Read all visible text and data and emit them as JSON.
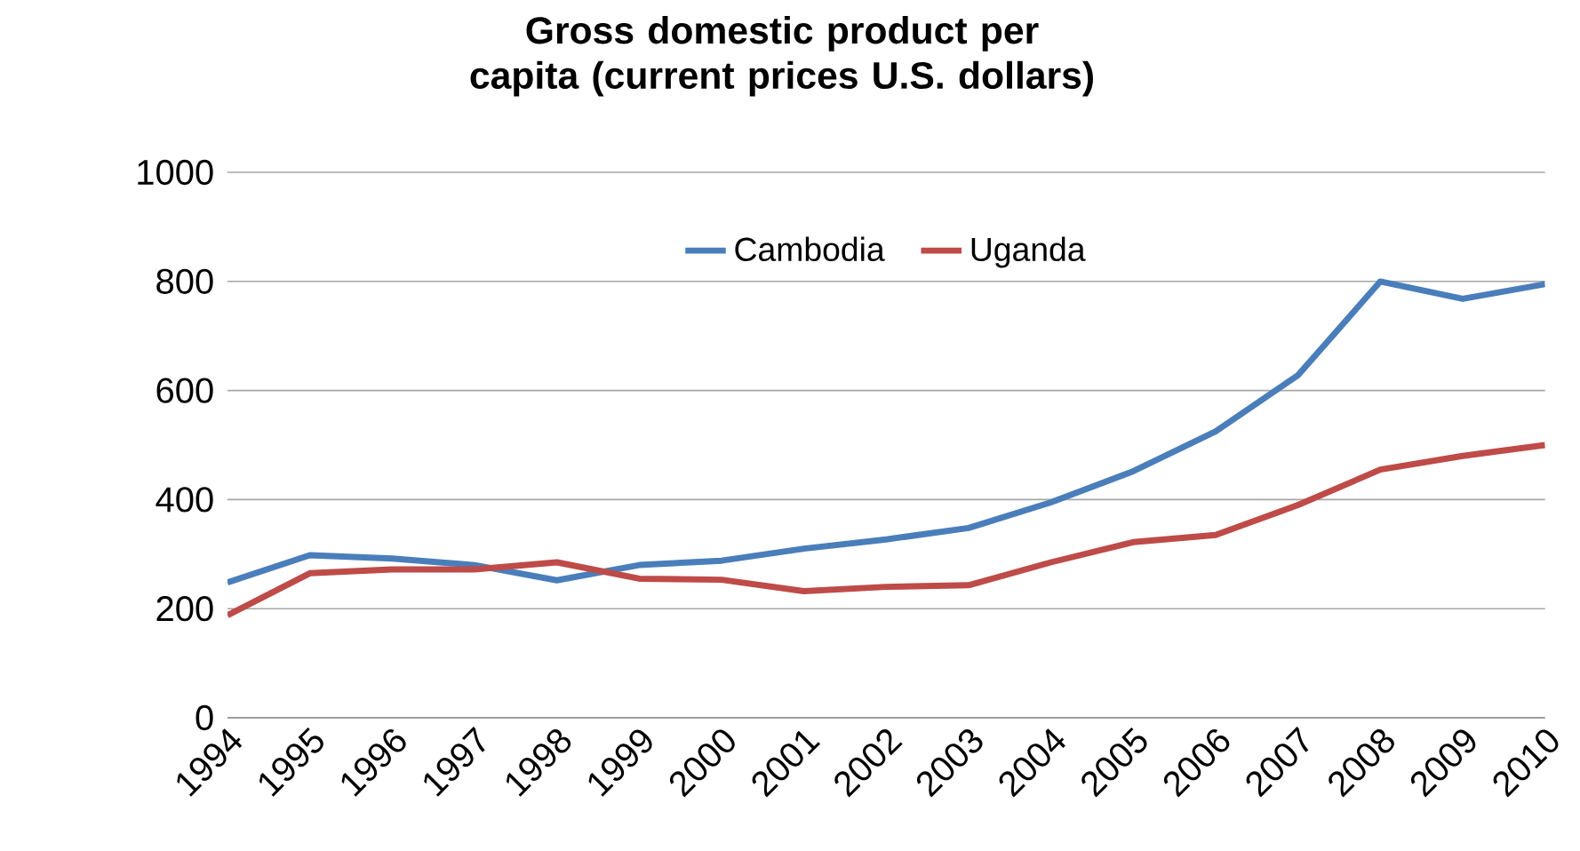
{
  "chart_data": {
    "type": "line",
    "title": "Gross domestic product per capita (current prices U.S. dollars)",
    "categories": [
      "1994",
      "1995",
      "1996",
      "1997",
      "1998",
      "1999",
      "2000",
      "2001",
      "2002",
      "2003",
      "2004",
      "2005",
      "2006",
      "2007",
      "2008",
      "2009",
      "2010"
    ],
    "series": [
      {
        "name": "Cambodia",
        "color": "#4a7ebb",
        "values": [
          248,
          298,
          292,
          280,
          252,
          280,
          288,
          310,
          327,
          348,
          395,
          452,
          525,
          628,
          800,
          768,
          795
        ]
      },
      {
        "name": "Uganda",
        "color": "#be4b48",
        "values": [
          188,
          265,
          272,
          272,
          285,
          255,
          253,
          232,
          240,
          243,
          285,
          322,
          335,
          390,
          455,
          480,
          500
        ]
      }
    ],
    "ylim": [
      0,
      1000
    ],
    "yticks": [
      0,
      200,
      400,
      600,
      800,
      1000
    ],
    "grid": "y",
    "legend": "top",
    "marker": "none",
    "line_style": "solid"
  }
}
